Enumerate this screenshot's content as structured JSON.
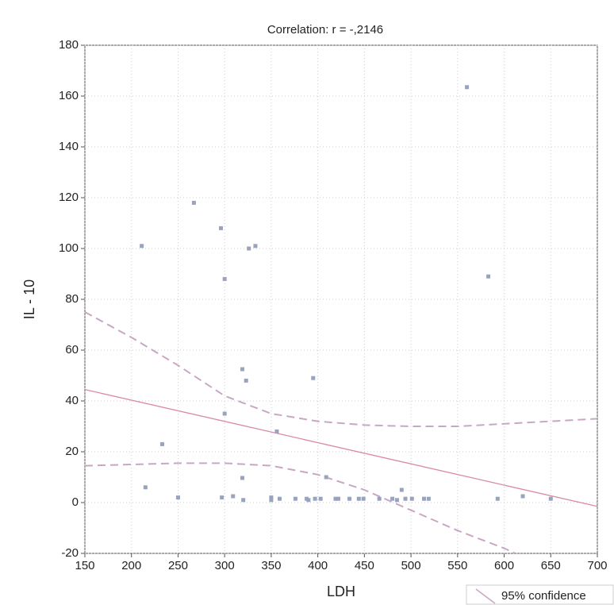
{
  "chart_data": {
    "type": "scatter",
    "title": "Correlation: r = -,2146",
    "x_label": "LDH",
    "y_label": "IL - 10",
    "xlim": [
      150,
      700
    ],
    "ylim": [
      -20,
      180
    ],
    "xticks": [
      150,
      200,
      250,
      300,
      350,
      400,
      450,
      500,
      550,
      600,
      650,
      700
    ],
    "yticks": [
      -20,
      0,
      20,
      40,
      60,
      80,
      100,
      120,
      140,
      160,
      180
    ],
    "grid": true,
    "points": {
      "color": "#9aa3bd",
      "x": [
        211,
        215,
        233,
        250,
        267,
        296,
        300,
        300,
        297,
        309,
        319,
        323,
        326,
        333,
        319,
        320,
        350,
        350,
        356,
        359,
        376,
        388,
        390,
        395,
        397,
        403,
        409,
        419,
        422,
        434,
        444,
        449,
        466,
        480,
        485,
        490,
        494,
        501,
        514,
        519,
        560,
        583,
        593,
        620,
        650
      ],
      "values": [
        101,
        6,
        23,
        2,
        118,
        108,
        88,
        35,
        2,
        2.5,
        52.5,
        48,
        100,
        101,
        9.7,
        1,
        2,
        1,
        28,
        1.5,
        1.5,
        1.5,
        1,
        49,
        1.5,
        1.5,
        10,
        1.5,
        1.5,
        1.5,
        1.5,
        1.5,
        1.5,
        1.5,
        1,
        5,
        1.5,
        1.5,
        1.5,
        1.5,
        163.5,
        89,
        1.5,
        2.5,
        1.5
      ]
    },
    "fit": {
      "color": "#d98aa0",
      "x": [
        150,
        700
      ],
      "values": [
        44.5,
        -1.5
      ]
    },
    "bands": {
      "name": "95% confidence",
      "color": "#c9a7c3",
      "upper": {
        "x": [
          150,
          200,
          250,
          300,
          350,
          400,
          450,
          500,
          550,
          600,
          650,
          700
        ],
        "values": [
          75,
          65,
          54,
          42,
          35,
          32,
          30.5,
          30,
          30,
          31,
          32,
          33
        ]
      },
      "lower": {
        "x": [
          150,
          200,
          250,
          300,
          350,
          400,
          450,
          500,
          550,
          600,
          612
        ],
        "values": [
          14.5,
          15,
          15.5,
          15.5,
          14.5,
          11,
          5,
          -3,
          -11,
          -18,
          -20
        ]
      }
    }
  }
}
